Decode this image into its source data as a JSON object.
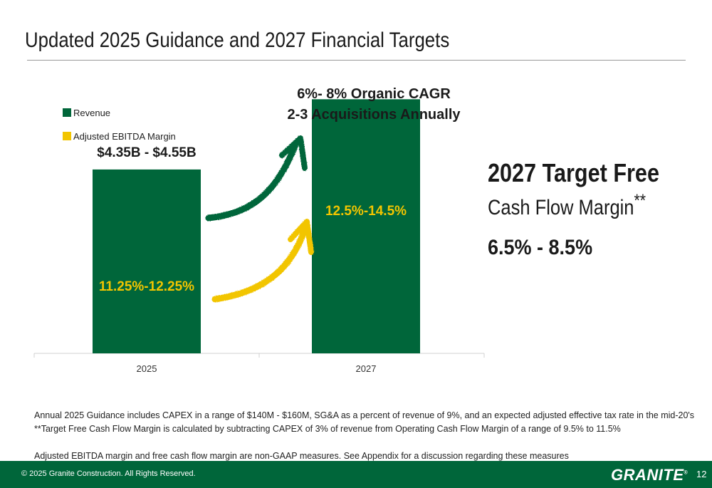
{
  "title": "Updated 2025 Guidance and 2027 Financial Targets",
  "legend": [
    {
      "label": "Revenue",
      "color": "#00663a"
    },
    {
      "label": "Adjusted EBITDA Margin",
      "color": "#f2c500"
    }
  ],
  "chart_data": {
    "type": "bar",
    "categories": [
      "2025",
      "2027"
    ],
    "series": [
      {
        "name": "Revenue",
        "values": [
          4.45,
          6.15
        ],
        "range_labels": [
          "$4.35B - $4.55B",
          ""
        ]
      },
      {
        "name": "Adjusted EBITDA Margin",
        "values": [
          "11.25%-12.25%",
          "12.5%-14.5%"
        ]
      }
    ],
    "annotation": [
      "6%- 8% Organic CAGR",
      "2-3 Acquisitions Annually"
    ],
    "axis": {
      "y_hidden": true,
      "ylim": [
        0,
        7
      ]
    },
    "colors": {
      "revenue": "#00663a",
      "ebitda": "#f2c500"
    }
  },
  "target": {
    "heading": "2027 Target Free",
    "subheading": "Cash Flow Margin",
    "marker": "**",
    "value": "6.5% - 8.5%"
  },
  "notes": [
    "Annual 2025 Guidance includes CAPEX in a range of $140M - $160M, SG&A as a percent of revenue of 9%, and an expected adjusted effective tax rate in the mid-20's",
    "**Target Free Cash Flow Margin is calculated by subtracting CAPEX of 3% of revenue from Operating Cash Flow Margin of a range of 9.5% to 11.5%",
    "",
    "Adjusted EBITDA margin and free cash flow margin are non-GAAP measures. See Appendix for a discussion regarding these measures"
  ],
  "footer": {
    "copyright": "© 2025 Granite Construction. All Rights Reserved.",
    "logo": "GRANITE",
    "logo_mark": "®",
    "page": "12"
  }
}
